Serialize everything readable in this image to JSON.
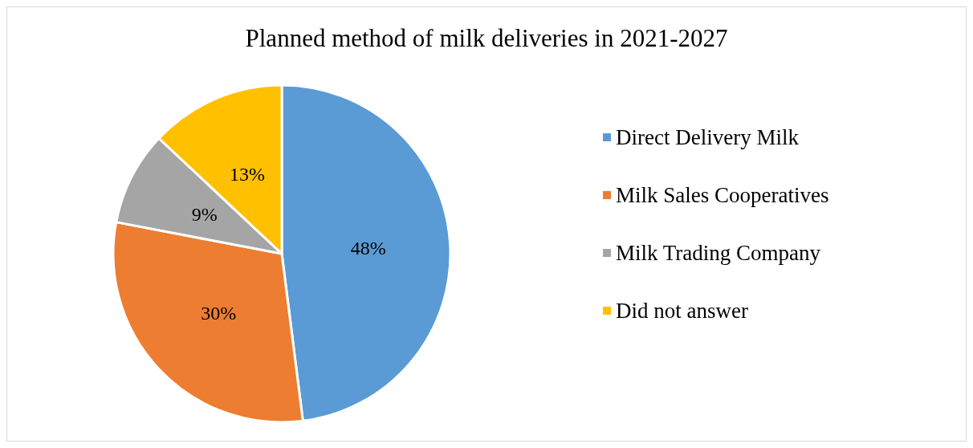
{
  "chart_data": {
    "type": "pie",
    "title": "Planned method of milk deliveries in 2021-2027",
    "categories": [
      "Direct Delivery Milk",
      "Milk Sales Cooperatives",
      "Milk Trading Company",
      "Did not answer"
    ],
    "values": [
      48,
      30,
      9,
      13
    ],
    "value_labels": [
      "48%",
      "30%",
      "9%",
      "13%"
    ],
    "colors": [
      "#5b9bd5",
      "#ed7d31",
      "#a5a5a5",
      "#ffc000"
    ],
    "legend": "right"
  }
}
